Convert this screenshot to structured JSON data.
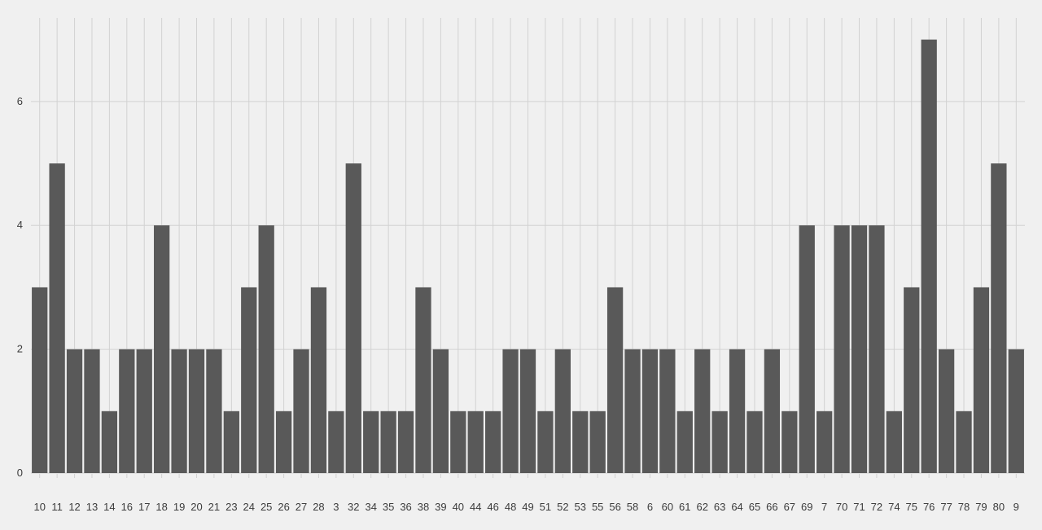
{
  "chart_data": {
    "type": "bar",
    "title": "",
    "xlabel": "",
    "ylabel": "",
    "categories": [
      "10",
      "11",
      "12",
      "13",
      "14",
      "16",
      "17",
      "18",
      "19",
      "20",
      "21",
      "23",
      "24",
      "25",
      "26",
      "27",
      "28",
      "3",
      "32",
      "34",
      "35",
      "36",
      "38",
      "39",
      "40",
      "44",
      "46",
      "48",
      "49",
      "51",
      "52",
      "53",
      "55",
      "56",
      "58",
      "6",
      "60",
      "61",
      "62",
      "63",
      "64",
      "65",
      "66",
      "67",
      "69",
      "7",
      "70",
      "71",
      "72",
      "74",
      "75",
      "76",
      "77",
      "78",
      "79",
      "80",
      "9"
    ],
    "values": [
      3,
      5,
      2,
      2,
      1,
      2,
      2,
      4,
      2,
      2,
      2,
      1,
      3,
      4,
      1,
      2,
      3,
      1,
      5,
      1,
      1,
      1,
      3,
      2,
      1,
      1,
      1,
      2,
      2,
      1,
      2,
      1,
      1,
      3,
      2,
      2,
      2,
      1,
      2,
      1,
      2,
      1,
      2,
      1,
      4,
      1,
      4,
      4,
      4,
      1,
      3,
      7,
      2,
      1,
      3,
      5,
      2
    ],
    "ylim": [
      0,
      7.35
    ],
    "yticks": [
      0,
      2,
      4,
      6
    ],
    "grid": true,
    "colors": {
      "background": "#f0f0f0",
      "grid": "#d2d2d2",
      "bar": "#595959",
      "text": "#3c3c3c"
    }
  }
}
